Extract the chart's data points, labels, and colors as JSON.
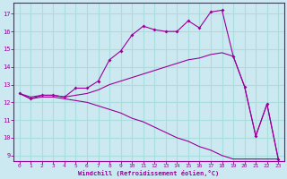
{
  "bg_color": "#cce8f0",
  "line_color": "#990099",
  "grid_color": "#aadddd",
  "xlabel": "Windchill (Refroidissement éolien,°C)",
  "xlabel_color": "#990099",
  "tick_color": "#990099",
  "xlim": [
    -0.5,
    23.5
  ],
  "ylim": [
    8.7,
    17.6
  ],
  "yticks": [
    9,
    10,
    11,
    12,
    13,
    14,
    15,
    16,
    17
  ],
  "xticks": [
    0,
    1,
    2,
    3,
    4,
    5,
    6,
    7,
    8,
    9,
    10,
    11,
    12,
    13,
    14,
    15,
    16,
    17,
    18,
    19,
    20,
    21,
    22,
    23
  ],
  "line1_x": [
    0,
    1,
    2,
    3,
    4,
    5,
    6,
    7,
    8,
    9,
    10,
    11,
    12,
    13,
    14,
    15,
    16,
    17,
    18,
    19,
    20,
    21,
    22,
    23
  ],
  "line1_y": [
    12.5,
    12.2,
    12.4,
    12.4,
    12.3,
    12.8,
    12.8,
    13.2,
    14.4,
    14.9,
    15.8,
    16.3,
    16.1,
    16.0,
    16.0,
    16.6,
    16.2,
    17.1,
    17.2,
    14.6,
    12.9,
    10.1,
    11.9,
    8.8
  ],
  "line2_x": [
    0,
    1,
    2,
    3,
    4,
    5,
    6,
    7,
    8,
    9,
    10,
    11,
    12,
    13,
    14,
    15,
    16,
    17,
    18,
    19,
    20,
    21,
    22,
    23
  ],
  "line2_y": [
    12.5,
    12.3,
    12.4,
    12.4,
    12.3,
    12.4,
    12.5,
    12.7,
    13.0,
    13.2,
    13.4,
    13.6,
    13.8,
    14.0,
    14.2,
    14.4,
    14.5,
    14.7,
    14.8,
    14.6,
    12.9,
    10.1,
    11.9,
    8.8
  ],
  "line3_x": [
    0,
    1,
    2,
    3,
    4,
    5,
    6,
    7,
    8,
    9,
    10,
    11,
    12,
    13,
    14,
    15,
    16,
    17,
    18,
    19,
    20,
    21,
    22,
    23
  ],
  "line3_y": [
    12.5,
    12.2,
    12.3,
    12.3,
    12.2,
    12.1,
    12.0,
    11.8,
    11.6,
    11.4,
    11.1,
    10.9,
    10.6,
    10.3,
    10.0,
    9.8,
    9.5,
    9.3,
    9.0,
    8.8,
    8.8,
    8.8,
    8.8,
    8.8
  ]
}
